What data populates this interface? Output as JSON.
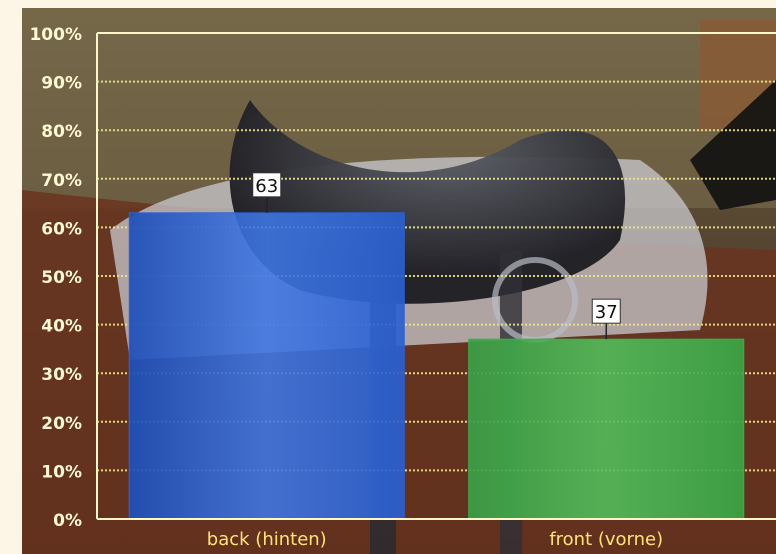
{
  "chart_data": {
    "type": "bar",
    "categories": [
      "back (hinten)",
      "front (vorne)"
    ],
    "values": [
      63,
      37
    ],
    "data_labels": [
      "63",
      "37"
    ],
    "title": "",
    "xlabel": "",
    "ylabel": "",
    "ylim": [
      0,
      100
    ],
    "yticks": [
      "0%",
      "10%",
      "20%",
      "30%",
      "40%",
      "50%",
      "60%",
      "70%",
      "80%",
      "90%",
      "100%"
    ],
    "grid": true,
    "legend": "none",
    "background": "photo of a horse saddle",
    "colors": {
      "bars": [
        "#2f63d6",
        "#3fae4b"
      ],
      "axis": "#fff7c8",
      "grid": "#f0e88a",
      "tick_text": "#fff8d0",
      "category_text": "#ffe27a",
      "label_box": "#ffffff"
    }
  }
}
